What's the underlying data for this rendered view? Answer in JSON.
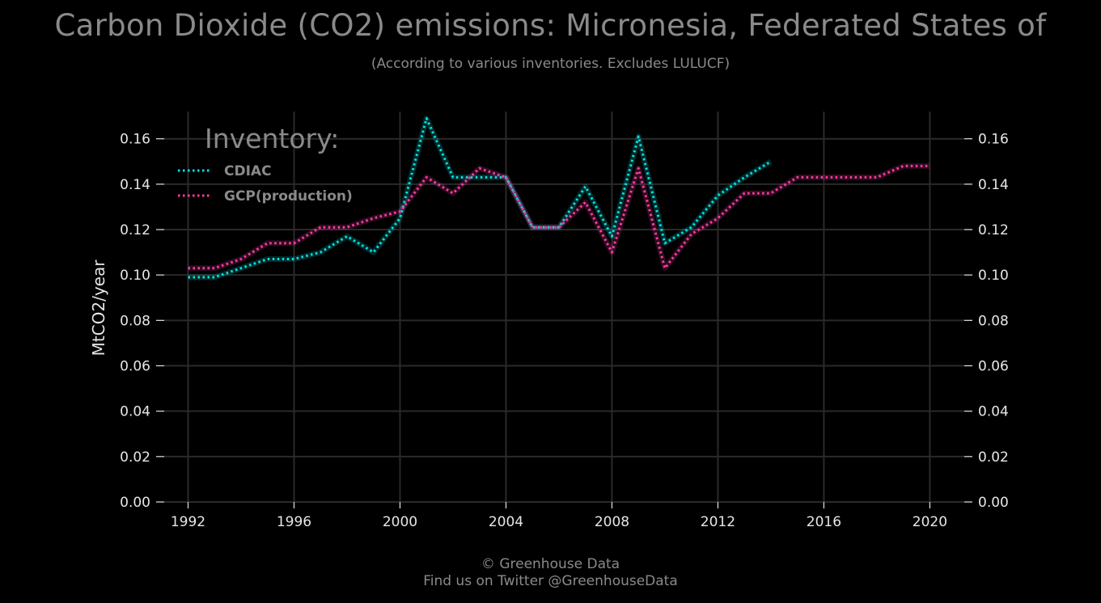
{
  "header": {
    "title": "Carbon Dioxide (CO2) emissions: Micronesia, Federated States of",
    "subtitle": "(According to various inventories. Excludes LULUCF)"
  },
  "footer": {
    "line1": "© Greenhouse Data",
    "line2": "Find us on Twitter @GreenhouseData"
  },
  "chart_data": {
    "type": "line",
    "title": "Carbon Dioxide (CO2) emissions: Micronesia, Federated States of",
    "subtitle": "(According to various inventories. Excludes LULUCF)",
    "ylabel": "MtCO2/year",
    "xlabel": "",
    "xlim": [
      1991.1,
      2021.3
    ],
    "ylim": [
      0.0,
      0.172
    ],
    "x_ticks": [
      1992,
      1996,
      2000,
      2004,
      2008,
      2012,
      2016,
      2020
    ],
    "y_ticks": [
      0.0,
      0.02,
      0.04,
      0.06,
      0.08,
      0.1,
      0.12,
      0.14,
      0.16
    ],
    "y_tick_labels": [
      "0.00",
      "0.02",
      "0.04",
      "0.06",
      "0.08",
      "0.10",
      "0.12",
      "0.14",
      "0.16"
    ],
    "grid": true,
    "legend_title": "Inventory:",
    "legend_position": "top-left",
    "series": [
      {
        "name": "CDIAC",
        "color": "#00e5e5",
        "x": [
          1992,
          1993,
          1994,
          1995,
          1996,
          1997,
          1998,
          1999,
          2000,
          2001,
          2002,
          2003,
          2004,
          2005,
          2006,
          2007,
          2008,
          2009,
          2010,
          2011,
          2012,
          2013,
          2014
        ],
        "values": [
          0.099,
          0.099,
          0.103,
          0.107,
          0.107,
          0.11,
          0.117,
          0.11,
          0.125,
          0.169,
          0.143,
          0.143,
          0.143,
          0.121,
          0.121,
          0.139,
          0.117,
          0.161,
          0.114,
          0.121,
          0.135,
          0.143,
          0.15
        ]
      },
      {
        "name": "GCP(production)",
        "color": "#ff3da6",
        "x": [
          1992,
          1993,
          1994,
          1995,
          1996,
          1997,
          1998,
          1999,
          2000,
          2001,
          2002,
          2003,
          2004,
          2005,
          2006,
          2007,
          2008,
          2009,
          2010,
          2011,
          2012,
          2013,
          2014,
          2015,
          2016,
          2017,
          2018,
          2019,
          2020
        ],
        "values": [
          0.103,
          0.103,
          0.107,
          0.114,
          0.114,
          0.121,
          0.121,
          0.125,
          0.128,
          0.143,
          0.136,
          0.147,
          0.143,
          0.121,
          0.121,
          0.132,
          0.11,
          0.147,
          0.103,
          0.118,
          0.125,
          0.136,
          0.136,
          0.143,
          0.143,
          0.143,
          0.143,
          0.148,
          0.148
        ]
      }
    ]
  }
}
